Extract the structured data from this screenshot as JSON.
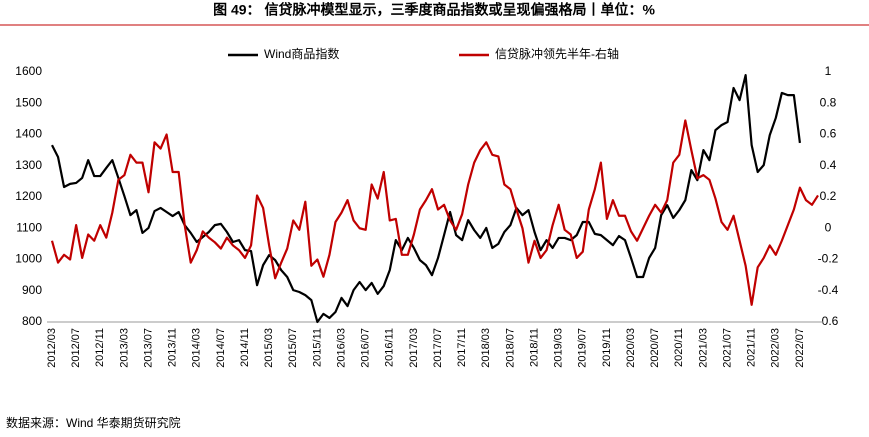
{
  "chart_data": {
    "type": "line",
    "title": "图 49： 信贷脉冲模型显示，三季度商品指数或呈现偏强格局丨单位：%",
    "source": "数据来源：Wind  华泰期货研究院",
    "categories": [
      "2012/03",
      null,
      null,
      null,
      "2012/07",
      null,
      null,
      null,
      "2012/11",
      null,
      null,
      null,
      "2013/03",
      null,
      null,
      null,
      "2013/07",
      null,
      null,
      null,
      "2013/11",
      null,
      null,
      null,
      "2014/03",
      null,
      null,
      null,
      "2014/07",
      null,
      null,
      null,
      "2014/11",
      null,
      null,
      null,
      "2015/03",
      null,
      null,
      null,
      "2015/07",
      null,
      null,
      null,
      "2015/11",
      null,
      null,
      null,
      "2016/03",
      null,
      null,
      null,
      "2016/07",
      null,
      null,
      null,
      "2016/11",
      null,
      null,
      null,
      "2017/03",
      null,
      null,
      null,
      "2017/07",
      null,
      null,
      null,
      "2017/11",
      null,
      null,
      null,
      "2018/03",
      null,
      null,
      null,
      "2018/07",
      null,
      null,
      null,
      "2018/11",
      null,
      null,
      null,
      "2019/03",
      null,
      null,
      null,
      "2019/07",
      null,
      null,
      null,
      "2019/11",
      null,
      null,
      null,
      "2020/03",
      null,
      null,
      null,
      "2020/07",
      null,
      null,
      null,
      "2020/11",
      null,
      null,
      null,
      "2021/03",
      null,
      null,
      null,
      "2021/07",
      null,
      null,
      null,
      "2021/11",
      null,
      null,
      null,
      "2022/03",
      null,
      null,
      null,
      "2022/07",
      null,
      null,
      null
    ],
    "series": [
      {
        "name": "Wind商品指数",
        "color": "#000000",
        "values": [
          1366,
          1328,
          1232,
          1242,
          1245,
          1261,
          1318,
          1267,
          1267,
          1293,
          1318,
          1261,
          1203,
          1142,
          1158,
          1085,
          1101,
          1155,
          1165,
          1152,
          1139,
          1152,
          1110,
          1085,
          1056,
          1072,
          1088,
          1110,
          1114,
          1088,
          1056,
          1062,
          1030,
          1027,
          918,
          982,
          1014,
          998,
          966,
          944,
          902,
          896,
          886,
          870,
          800,
          826,
          813,
          832,
          877,
          851,
          902,
          928,
          902,
          925,
          890,
          915,
          966,
          1062,
          1030,
          1069,
          1037,
          998,
          982,
          950,
          1005,
          1078,
          1152,
          1078,
          1062,
          1126,
          1094,
          1069,
          1101,
          1037,
          1050,
          1088,
          1110,
          1165,
          1142,
          1158,
          1088,
          1030,
          1062,
          1037,
          1069,
          1069,
          1062,
          1078,
          1120,
          1120,
          1082,
          1078,
          1062,
          1046,
          1075,
          1062,
          1005,
          944,
          944,
          1005,
          1037,
          1142,
          1174,
          1133,
          1158,
          1190,
          1286,
          1254,
          1350,
          1318,
          1414,
          1430,
          1440,
          1549,
          1510,
          1590,
          1366,
          1280,
          1302,
          1398,
          1453,
          1533,
          1526,
          1526,
          1373,
          null,
          null,
          null
        ]
      },
      {
        "name": "信贷脉冲领先半年-右轴",
        "color": "#c00000",
        "axis": "y2",
        "values": [
          -0.08,
          -0.22,
          -0.17,
          -0.2,
          0.02,
          -0.19,
          -0.04,
          -0.08,
          0.02,
          -0.06,
          0.1,
          0.31,
          0.34,
          0.47,
          0.42,
          0.42,
          0.23,
          0.55,
          0.51,
          0.6,
          0.36,
          0.36,
          0.02,
          -0.22,
          -0.14,
          -0.02,
          -0.06,
          -0.09,
          -0.13,
          -0.06,
          -0.11,
          -0.14,
          -0.19,
          -0.11,
          0.21,
          0.13,
          -0.11,
          -0.32,
          -0.22,
          -0.13,
          0.05,
          -0.01,
          0.17,
          -0.24,
          -0.2,
          -0.31,
          -0.17,
          0.04,
          0.1,
          0.18,
          0.05,
          0,
          -0.01,
          0.28,
          0.19,
          0.36,
          0.05,
          0.06,
          -0.17,
          -0.17,
          -0.04,
          0.12,
          0.18,
          0.25,
          0.12,
          0.15,
          0.05,
          -0.01,
          0.09,
          0.28,
          0.42,
          0.5,
          0.55,
          0.47,
          0.46,
          0.28,
          0.25,
          0.12,
          0,
          -0.22,
          -0.08,
          -0.19,
          -0.14,
          0.02,
          0.15,
          -0.01,
          -0.04,
          -0.19,
          -0.15,
          0.12,
          0.25,
          0.42,
          0.06,
          0.18,
          0.08,
          0.08,
          -0.02,
          -0.08,
          0,
          0.08,
          0.15,
          0.1,
          0.18,
          0.42,
          0.47,
          0.69,
          0.5,
          0.32,
          0.34,
          0.31,
          0.19,
          0.04,
          -0.01,
          0.08,
          -0.08,
          -0.24,
          -0.49,
          -0.25,
          -0.19,
          -0.11,
          -0.17,
          -0.08,
          0.02,
          0.12,
          0.26,
          0.18,
          0.15,
          0.21
        ]
      }
    ],
    "ylim": [
      800,
      1600
    ],
    "yticks": [
      800,
      900,
      1000,
      1100,
      1200,
      1300,
      1400,
      1500,
      1600
    ],
    "y2lim": [
      -0.6,
      1
    ],
    "y2ticks": [
      -0.6,
      -0.4,
      -0.2,
      0,
      0.2,
      0.4,
      0.6,
      0.8,
      1
    ],
    "grid": false
  }
}
